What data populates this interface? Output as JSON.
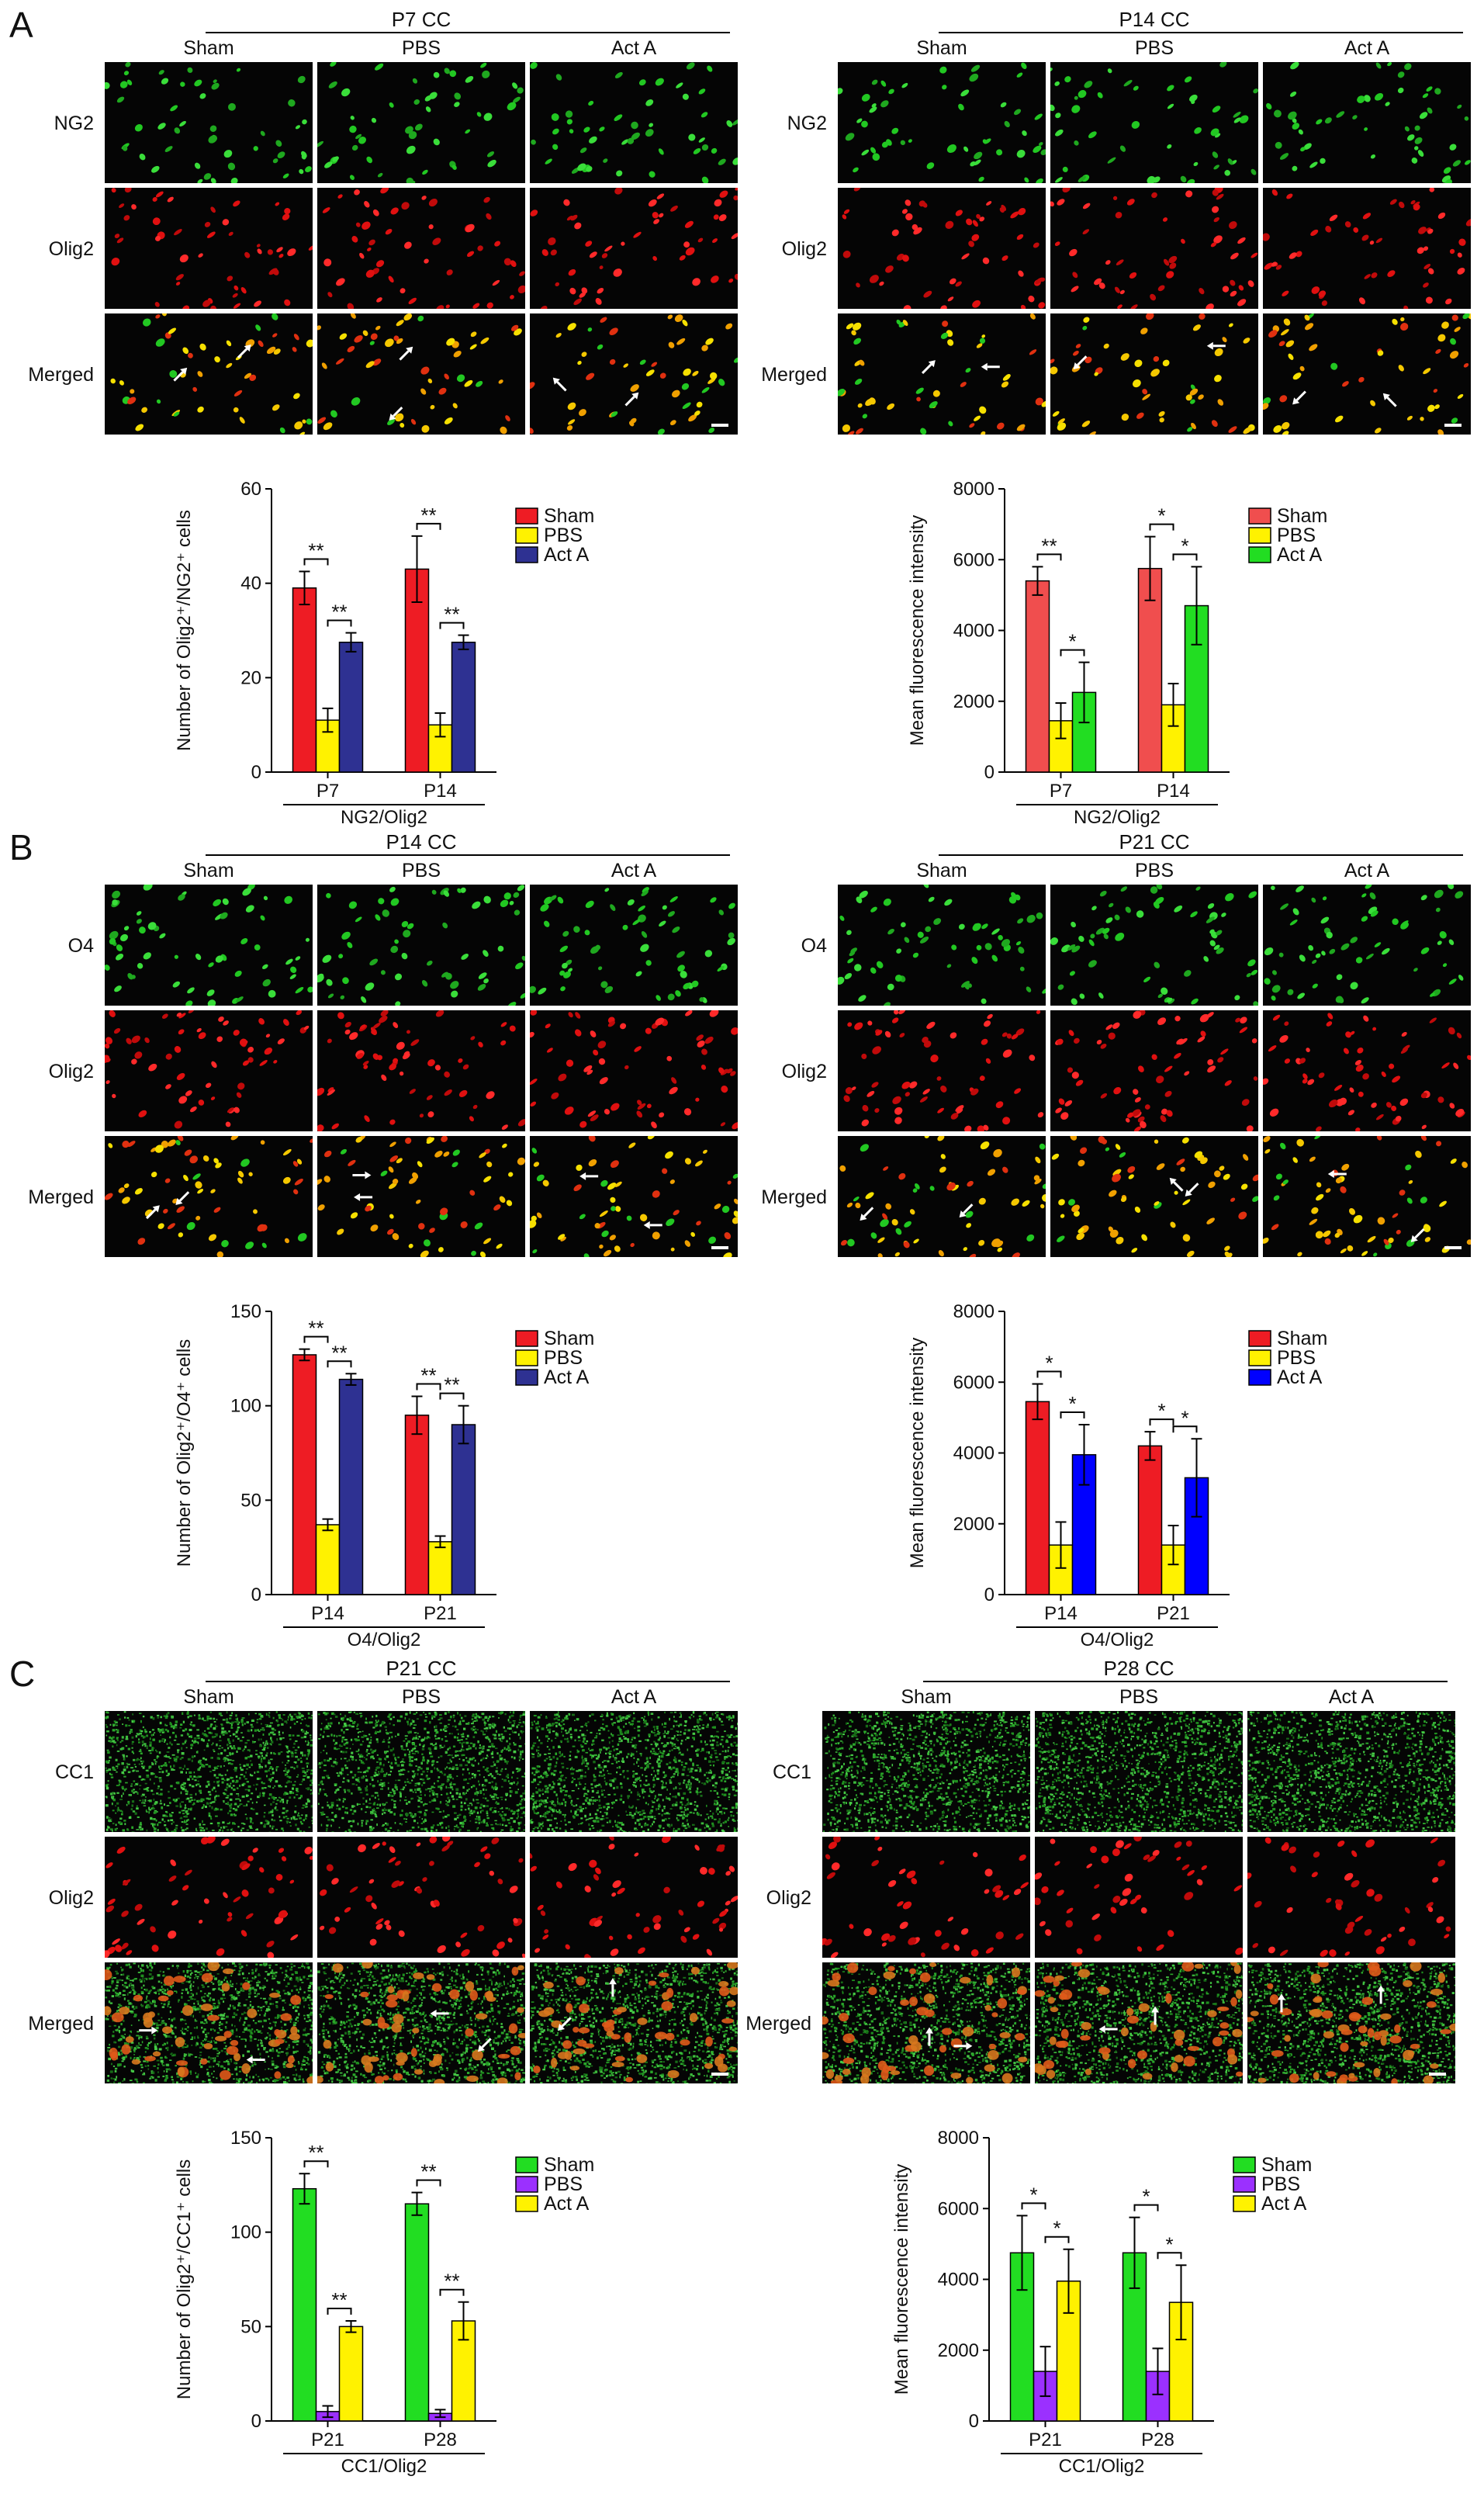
{
  "panels": [
    {
      "letter": "A",
      "groups": [
        {
          "title": "P7 CC",
          "columns": [
            "Sham",
            "PBS",
            "Act A"
          ],
          "rows": [
            {
              "label": "NG2",
              "palette": "green",
              "density": 50
            },
            {
              "label": "Olig2",
              "palette": "red",
              "density": 50
            },
            {
              "label": "Merged",
              "palette": "merged",
              "density": 50
            }
          ],
          "chart_data": {
            "type": "bar",
            "ylabel": "Number of Olig2⁺/NG2⁺ cells",
            "xlabel": "NG2/Olig2",
            "categories": [
              "P7",
              "P14"
            ],
            "ylim": [
              0,
              60
            ],
            "yticks": [
              0,
              20,
              40,
              60
            ],
            "series": [
              {
                "name": "Sham",
                "color": "#ee1c24",
                "values": [
                  39,
                  43
                ],
                "errors": [
                  3.5,
                  7
                ]
              },
              {
                "name": "PBS",
                "color": "#fff200",
                "values": [
                  11,
                  10
                ],
                "errors": [
                  2.5,
                  2.5
                ]
              },
              {
                "name": "Act A",
                "color": "#2e3192",
                "values": [
                  27.5,
                  27.5
                ],
                "errors": [
                  2,
                  1.5
                ]
              }
            ],
            "brackets": [
              {
                "cat": 0,
                "from": 0,
                "to": 1,
                "label": "**"
              },
              {
                "cat": 0,
                "from": 1,
                "to": 2,
                "label": "**"
              },
              {
                "cat": 1,
                "from": 0,
                "to": 1,
                "label": "**"
              },
              {
                "cat": 1,
                "from": 1,
                "to": 2,
                "label": "**"
              }
            ],
            "legend": "top-right"
          }
        },
        {
          "title": "P14 CC",
          "columns": [
            "Sham",
            "PBS",
            "Act A"
          ],
          "rows": [
            {
              "label": "NG2",
              "palette": "green",
              "density": 50
            },
            {
              "label": "Olig2",
              "palette": "red",
              "density": 50
            },
            {
              "label": "Merged",
              "palette": "merged",
              "density": 50
            }
          ],
          "chart_data": {
            "type": "bar",
            "ylabel": "Mean fluorescence intensity",
            "xlabel": "NG2/Olig2",
            "categories": [
              "P7",
              "P14"
            ],
            "ylim": [
              0,
              8000
            ],
            "yticks": [
              0,
              2000,
              4000,
              6000,
              8000
            ],
            "series": [
              {
                "name": "Sham",
                "color": "#f04e4e",
                "values": [
                  5400,
                  5750
                ],
                "errors": [
                  400,
                  900
                ]
              },
              {
                "name": "PBS",
                "color": "#fff200",
                "values": [
                  1450,
                  1900
                ],
                "errors": [
                  500,
                  600
                ]
              },
              {
                "name": "Act A",
                "color": "#22dd22",
                "values": [
                  2250,
                  4700
                ],
                "errors": [
                  850,
                  1100
                ]
              }
            ],
            "brackets": [
              {
                "cat": 0,
                "from": 0,
                "to": 1,
                "label": "**"
              },
              {
                "cat": 0,
                "from": 1,
                "to": 2,
                "label": "*"
              },
              {
                "cat": 1,
                "from": 0,
                "to": 1,
                "label": "*"
              },
              {
                "cat": 1,
                "from": 1,
                "to": 2,
                "label": "*"
              }
            ],
            "legend": "top-right"
          }
        }
      ]
    },
    {
      "letter": "B",
      "groups": [
        {
          "title": "P14 CC",
          "columns": [
            "Sham",
            "PBS",
            "Act A"
          ],
          "rows": [
            {
              "label": "O4",
              "palette": "green",
              "density": 60
            },
            {
              "label": "Olig2",
              "palette": "red",
              "density": 60
            },
            {
              "label": "Merged",
              "palette": "merged",
              "density": 60
            }
          ],
          "chart_data": {
            "type": "bar",
            "ylabel": "Number of Olig2⁺/O4⁺ cells",
            "xlabel": "O4/Olig2",
            "categories": [
              "P14",
              "P21"
            ],
            "ylim": [
              0,
              150
            ],
            "yticks": [
              0,
              50,
              100,
              150
            ],
            "series": [
              {
                "name": "Sham",
                "color": "#ee1c24",
                "values": [
                  127,
                  95
                ],
                "errors": [
                  3,
                  10
                ]
              },
              {
                "name": "PBS",
                "color": "#fff200",
                "values": [
                  37,
                  28
                ],
                "errors": [
                  3,
                  3
                ]
              },
              {
                "name": "Act A",
                "color": "#2e3192",
                "values": [
                  114,
                  90
                ],
                "errors": [
                  3,
                  10
                ]
              }
            ],
            "brackets": [
              {
                "cat": 0,
                "from": 0,
                "to": 1,
                "label": "**"
              },
              {
                "cat": 0,
                "from": 1,
                "to": 2,
                "label": "**"
              },
              {
                "cat": 1,
                "from": 0,
                "to": 1,
                "label": "**"
              },
              {
                "cat": 1,
                "from": 1,
                "to": 2,
                "label": "**"
              }
            ],
            "legend": "top-right"
          }
        },
        {
          "title": "P21 CC",
          "columns": [
            "Sham",
            "PBS",
            "Act A"
          ],
          "rows": [
            {
              "label": "O4",
              "palette": "green",
              "density": 60
            },
            {
              "label": "Olig2",
              "palette": "red",
              "density": 60
            },
            {
              "label": "Merged",
              "palette": "merged",
              "density": 60
            }
          ],
          "chart_data": {
            "type": "bar",
            "ylabel": "Mean fluorescence intensity",
            "xlabel": "O4/Olig2",
            "categories": [
              "P14",
              "P21"
            ],
            "ylim": [
              0,
              8000
            ],
            "yticks": [
              0,
              2000,
              4000,
              6000,
              8000
            ],
            "series": [
              {
                "name": "Sham",
                "color": "#ee1c24",
                "values": [
                  5450,
                  4200
                ],
                "errors": [
                  500,
                  400
                ]
              },
              {
                "name": "PBS",
                "color": "#fff200",
                "values": [
                  1400,
                  1400
                ],
                "errors": [
                  650,
                  550
                ]
              },
              {
                "name": "Act A",
                "color": "#0000ff",
                "values": [
                  3950,
                  3300
                ],
                "errors": [
                  850,
                  1100
                ]
              }
            ],
            "brackets": [
              {
                "cat": 0,
                "from": 0,
                "to": 1,
                "label": "*"
              },
              {
                "cat": 0,
                "from": 1,
                "to": 2,
                "label": "*"
              },
              {
                "cat": 1,
                "from": 0,
                "to": 1,
                "label": "*"
              },
              {
                "cat": 1,
                "from": 1,
                "to": 2,
                "label": "*"
              }
            ],
            "legend": "top-right"
          }
        }
      ]
    },
    {
      "letter": "C",
      "groups": [
        {
          "title": "P21 CC",
          "columns": [
            "Sham",
            "PBS",
            "Act A"
          ],
          "rows": [
            {
              "label": "CC1",
              "palette": "speckle",
              "density": 1400
            },
            {
              "label": "Olig2",
              "palette": "red",
              "density": 55
            },
            {
              "label": "Merged",
              "palette": "speckleMerged",
              "density": 1400
            }
          ],
          "chart_data": {
            "type": "bar",
            "ylabel": "Number of Olig2⁺/CC1⁺ cells",
            "xlabel": "CC1/Olig2",
            "categories": [
              "P21",
              "P28"
            ],
            "ylim": [
              0,
              150
            ],
            "yticks": [
              0,
              50,
              100,
              150
            ],
            "series": [
              {
                "name": "Sham",
                "color": "#22dd22",
                "values": [
                  123,
                  115
                ],
                "errors": [
                  8,
                  6
                ]
              },
              {
                "name": "PBS",
                "color": "#9b30ff",
                "values": [
                  5,
                  4
                ],
                "errors": [
                  3,
                  2
                ]
              },
              {
                "name": "Act A",
                "color": "#fff200",
                "values": [
                  50,
                  53
                ],
                "errors": [
                  3,
                  10
                ]
              }
            ],
            "brackets": [
              {
                "cat": 0,
                "from": 0,
                "to": 1,
                "label": "**"
              },
              {
                "cat": 0,
                "from": 1,
                "to": 2,
                "label": "**"
              },
              {
                "cat": 1,
                "from": 0,
                "to": 1,
                "label": "**"
              },
              {
                "cat": 1,
                "from": 1,
                "to": 2,
                "label": "**"
              }
            ],
            "legend": "top-right"
          }
        },
        {
          "title": "P28 CC",
          "columns": [
            "Sham",
            "PBS",
            "Act A"
          ],
          "rows": [
            {
              "label": "CC1",
              "palette": "speckle",
              "density": 1400
            },
            {
              "label": "Olig2",
              "palette": "red",
              "density": 45
            },
            {
              "label": "Merged",
              "palette": "speckleMerged",
              "density": 1400
            }
          ],
          "chart_data": {
            "type": "bar",
            "ylabel": "Mean fluorescence intensity",
            "xlabel": "CC1/Olig2",
            "categories": [
              "P21",
              "P28"
            ],
            "ylim": [
              0,
              8000
            ],
            "yticks": [
              0,
              2000,
              4000,
              6000,
              8000
            ],
            "series": [
              {
                "name": "Sham",
                "color": "#22dd22",
                "values": [
                  4750,
                  4750
                ],
                "errors": [
                  1050,
                  1000
                ]
              },
              {
                "name": "PBS",
                "color": "#9b30ff",
                "values": [
                  1400,
                  1400
                ],
                "errors": [
                  700,
                  650
                ]
              },
              {
                "name": "Act A",
                "color": "#fff200",
                "values": [
                  3950,
                  3350
                ],
                "errors": [
                  900,
                  1050
                ]
              }
            ],
            "brackets": [
              {
                "cat": 0,
                "from": 0,
                "to": 1,
                "label": "*"
              },
              {
                "cat": 0,
                "from": 1,
                "to": 2,
                "label": "*"
              },
              {
                "cat": 1,
                "from": 0,
                "to": 1,
                "label": "*"
              },
              {
                "cat": 1,
                "from": 1,
                "to": 2,
                "label": "*"
              }
            ],
            "legend": "top-right"
          }
        }
      ]
    }
  ]
}
